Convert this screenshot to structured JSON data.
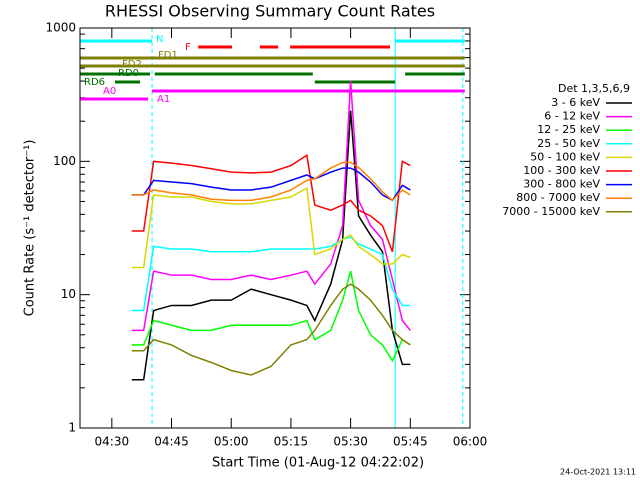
{
  "chart_data": {
    "type": "line",
    "title": "RHESSI Observing Summary Count Rates",
    "xlabel": "Start Time (01-Aug-12 04:22:02)",
    "ylabel": "Count Rate (s⁻¹ detector⁻¹)",
    "footer": "24-Oct-2021 13:11",
    "legend_title": "Det 1,3,5,6,9",
    "log_y": true,
    "xlim": [
      262,
      360
    ],
    "ylim": [
      1,
      1000
    ],
    "xticks": [
      {
        "value": 270,
        "label": "04:30"
      },
      {
        "value": 285,
        "label": "04:45"
      },
      {
        "value": 300,
        "label": "05:00"
      },
      {
        "value": 315,
        "label": "05:15"
      },
      {
        "value": 330,
        "label": "05:30"
      },
      {
        "value": 345,
        "label": "05:45"
      },
      {
        "value": 360,
        "label": "06:00"
      }
    ],
    "yticks": [
      1,
      10,
      100,
      1000
    ],
    "x": [
      275,
      278,
      280.5,
      285,
      290,
      295,
      300,
      305,
      310,
      315,
      319,
      321,
      325,
      328,
      330,
      332,
      335,
      338,
      340.5,
      343,
      345
    ],
    "series": [
      {
        "name": "3 - 6 keV",
        "color": "#000000",
        "values": [
          2.3,
          2.3,
          7.6,
          8.3,
          8.3,
          9.1,
          9.1,
          11,
          10,
          9.1,
          8.3,
          6.4,
          12,
          26,
          240,
          39,
          28,
          21,
          5.4,
          3,
          3
        ]
      },
      {
        "name": "6 - 12 keV",
        "color": "#ff00ff",
        "values": [
          5.4,
          5.4,
          15,
          14,
          14,
          13,
          13,
          14,
          13,
          14,
          15,
          12,
          17,
          33,
          400,
          51,
          33,
          26,
          13,
          6.4,
          5.4
        ]
      },
      {
        "name": "12 - 25 keV",
        "color": "#00ff00",
        "values": [
          4.2,
          4.2,
          6.4,
          5.9,
          5.4,
          5.4,
          5.9,
          5.9,
          5.9,
          5.9,
          6.4,
          4.6,
          5.4,
          9.1,
          15,
          7.6,
          5,
          4.2,
          3.2,
          4.6,
          4.2
        ]
      },
      {
        "name": "25 - 50 keV",
        "color": "#00ffff",
        "values": [
          7.6,
          7.6,
          23,
          22,
          22,
          21,
          21,
          21,
          22,
          22,
          22,
          22,
          23,
          26,
          27,
          24,
          22,
          20,
          11,
          8.3,
          8.3
        ]
      },
      {
        "name": "50 - 100 keV",
        "color": "#d8d800",
        "values": [
          16,
          16,
          56,
          54,
          54,
          50,
          48,
          48,
          51,
          54,
          63,
          20,
          22,
          26,
          28,
          23,
          20,
          17,
          17,
          20,
          19
        ]
      },
      {
        "name": "100 - 300 keV",
        "color": "#ff0000",
        "values": [
          30,
          30,
          100,
          97,
          93,
          88,
          83,
          82,
          83,
          93,
          111,
          47,
          43,
          47,
          51,
          43,
          39,
          33,
          21,
          100,
          93
        ]
      },
      {
        "name": "300 - 800 keV",
        "color": "#0000ff",
        "values": [
          56,
          56,
          72,
          70,
          68,
          64,
          61,
          61,
          64,
          72,
          79,
          74,
          83,
          89,
          89,
          83,
          70,
          56,
          51,
          66,
          61
        ]
      },
      {
        "name": "800 - 7000 keV",
        "color": "#ff8000",
        "values": [
          56,
          56,
          61,
          58,
          56,
          52,
          51,
          51,
          54,
          61,
          72,
          74,
          89,
          98,
          98,
          90,
          74,
          59,
          51,
          61,
          56
        ]
      },
      {
        "name": "7000 - 15000 keV",
        "color": "#808000",
        "values": [
          3.8,
          3.8,
          4.6,
          4.2,
          3.5,
          3.1,
          2.7,
          2.5,
          2.9,
          4.2,
          4.6,
          5.4,
          8.3,
          11,
          12,
          11,
          9.1,
          7,
          5.4,
          4.6,
          4.2
        ]
      }
    ],
    "flags": [
      {
        "label": "N",
        "color": "#00ffff",
        "segments": [
          [
            262,
            280.1
          ],
          [
            341.2,
            358.7
          ]
        ]
      },
      {
        "label": "F",
        "color": "#ff0000",
        "segments": [
          [
            291.7,
            300.2
          ],
          [
            307.2,
            311.8
          ],
          [
            314.8,
            339.9
          ]
        ]
      },
      {
        "label": "FD1",
        "color": "#808000",
        "segments": [
          [
            262,
            358.7
          ]
        ]
      },
      {
        "label": "FD2",
        "color": "#808000",
        "segments": [
          [
            262,
            358.7
          ]
        ]
      },
      {
        "label": "RD0",
        "color": "#007000",
        "segments": [
          [
            262,
            279.6
          ],
          [
            280.8,
            320.5
          ],
          [
            343.7,
            358.7
          ]
        ]
      },
      {
        "label": "RD6",
        "color": "#007000",
        "segments": [
          [
            270.8,
            277.1
          ],
          [
            321,
            341.2
          ]
        ]
      },
      {
        "label": "A0",
        "color": "#ff00ff",
        "segments": [
          [
            262,
            279.1
          ]
        ]
      },
      {
        "label": "A1",
        "color": "#ff00ff",
        "segments": [
          [
            280.1,
            358.7
          ]
        ]
      }
    ],
    "markers": [
      {
        "x": 280.1,
        "style": "dashed",
        "color": "#00ffff"
      },
      {
        "x": 341.2,
        "style": "solid",
        "color": "#00ffff"
      },
      {
        "x": 358.2,
        "style": "dashed",
        "color": "#00ffff"
      }
    ]
  }
}
